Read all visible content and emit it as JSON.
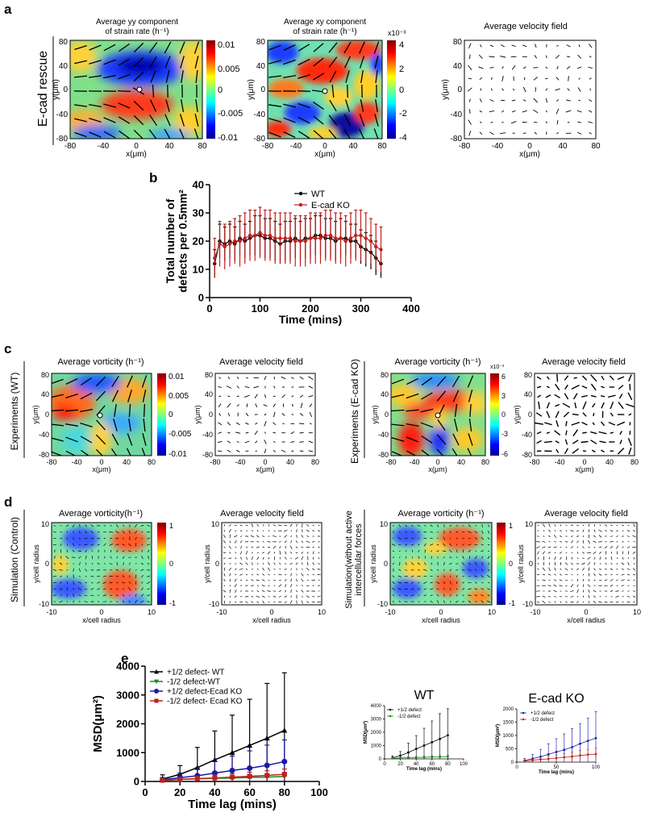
{
  "panel_letters": {
    "a": "a",
    "b": "b",
    "c": "c",
    "d": "d",
    "e": "e"
  },
  "colors": {
    "wt": "#000000",
    "ko": "#c0201e",
    "wt_plus": "#000000",
    "wt_minus": "#1a8a1a",
    "ko_plus": "#1a1aa6",
    "ko_minus": "#c0201e"
  },
  "row_labels": {
    "a": "E-cad rescue",
    "c_left": "Experiments (WT)",
    "c_right": "Experiments (E-cad KO)",
    "d_left": "Simulation (Control)",
    "d_right_1": "Simulation(without active",
    "d_right_2": "intercellular forces"
  },
  "panel_a": {
    "title1_l1": "Average yy component",
    "title1_l2": "of strain rate (h⁻¹)",
    "title2_l1": "Average xy component",
    "title2_l2": "of strain rate (h⁻¹)",
    "title3": "Average velocity field",
    "cbar1": [
      "0.01",
      "0.005",
      "0",
      "-0.005",
      "-0.01"
    ],
    "cbar2": [
      "4",
      "2",
      "0",
      "-2",
      "-4"
    ],
    "cbar2_exp": "x10⁻³",
    "xticks": [
      "-80",
      "-40",
      "0",
      "40",
      "80"
    ],
    "yticks": [
      "80",
      "40",
      "0",
      "-40",
      "-80"
    ],
    "xlabel": "x(μm)",
    "ylabel": "y(μm)"
  },
  "panel_c": {
    "t_vort": "Average vorticity (h⁻¹)",
    "t_vel": "Average velocity field",
    "cbar_left": [
      "0.01",
      "0.005",
      "0",
      "-0.005",
      "-0.01"
    ],
    "cbar_right": [
      "6",
      "3",
      "0",
      "-3",
      "-6"
    ],
    "cbar_right_exp": "x10⁻³",
    "xticks": [
      "-80",
      "-40",
      "0",
      "40",
      "80"
    ],
    "yticks": [
      "80",
      "40",
      "0",
      "-40",
      "-80"
    ],
    "xlabel": "x(μm)",
    "ylabel": "y(μm)"
  },
  "panel_d": {
    "t_vort_left": "Average vorticity(h⁻¹)",
    "t_vort_right": "Average vorticity (h⁻¹)",
    "t_vel": "Average velocity field",
    "cbar": [
      "1",
      "0",
      "-1"
    ],
    "xticks": [
      "-10",
      "0",
      "10"
    ],
    "yticks": [
      "10",
      "0",
      "-10"
    ],
    "xlabel": "x/cell radius",
    "ylabel": "y/cell radius"
  },
  "chart_data": [
    {
      "id": "b",
      "type": "line",
      "xlabel": "Time (mins)",
      "ylabel": "Total number of defects per 0.5mm²",
      "xlim": [
        0,
        400
      ],
      "ylim": [
        0,
        40
      ],
      "xticks": [
        "0",
        "100",
        "200",
        "300",
        "400"
      ],
      "yticks": [
        "0",
        "10",
        "20",
        "30",
        "40"
      ],
      "legend_position": "top",
      "x": [
        10,
        20,
        30,
        40,
        50,
        60,
        70,
        80,
        90,
        100,
        110,
        120,
        130,
        140,
        150,
        160,
        170,
        180,
        190,
        200,
        210,
        220,
        230,
        240,
        250,
        260,
        270,
        280,
        290,
        300,
        310,
        320,
        330,
        340
      ],
      "series": [
        {
          "name": "WT",
          "values": [
            12,
            20,
            19,
            20,
            19,
            21,
            20,
            21,
            22,
            22,
            21,
            21,
            20,
            19,
            20,
            20,
            21,
            20,
            21,
            21,
            22,
            22,
            21,
            21,
            20,
            21,
            21,
            20,
            20,
            18,
            17,
            16,
            14,
            12
          ],
          "err": [
            5,
            6,
            6,
            6,
            6,
            6,
            6,
            6,
            7,
            7,
            7,
            7,
            7,
            7,
            7,
            7,
            7,
            7,
            7,
            7,
            7,
            7,
            7,
            7,
            7,
            7,
            6,
            6,
            6,
            6,
            6,
            6,
            6,
            5
          ]
        },
        {
          "name": "E-cad KO",
          "values": [
            14,
            19,
            18,
            19,
            20,
            20,
            21,
            22,
            22,
            23,
            22,
            22,
            21,
            21,
            21,
            21,
            20,
            20,
            20,
            21,
            21,
            21,
            22,
            22,
            21,
            21,
            20,
            21,
            22,
            22,
            21,
            20,
            18,
            17
          ],
          "err": [
            7,
            8,
            8,
            8,
            8,
            9,
            9,
            9,
            9,
            9,
            9,
            9,
            9,
            9,
            9,
            9,
            9,
            9,
            9,
            9,
            9,
            9,
            9,
            9,
            9,
            9,
            9,
            9,
            9,
            9,
            9,
            8,
            8,
            8
          ]
        }
      ]
    },
    {
      "id": "e_main",
      "type": "line",
      "xlabel": "Time lag (mins)",
      "ylabel": "MSD(μm²)",
      "xlim": [
        0,
        100
      ],
      "ylim": [
        0,
        4000
      ],
      "xticks": [
        "0",
        "20",
        "40",
        "60",
        "80",
        "100"
      ],
      "yticks": [
        "0",
        "1000",
        "2000",
        "3000",
        "4000"
      ],
      "x": [
        10,
        20,
        30,
        40,
        50,
        60,
        70,
        80
      ],
      "series": [
        {
          "name": "+1/2 defect- WT",
          "values": [
            80,
            250,
            480,
            750,
            1000,
            1250,
            1500,
            1770
          ],
          "err": [
            150,
            300,
            700,
            1000,
            1300,
            1600,
            1900,
            2000
          ],
          "marker": "triangle-up"
        },
        {
          "name": "-1/2 defect-WT",
          "values": [
            40,
            70,
            90,
            110,
            120,
            140,
            150,
            170
          ],
          "err": [
            30,
            40,
            60,
            70,
            80,
            90,
            100,
            110
          ],
          "marker": "triangle-down"
        },
        {
          "name": "+1/2 defect-Ecad KO",
          "values": [
            60,
            130,
            200,
            290,
            380,
            460,
            560,
            690
          ],
          "err": [
            80,
            160,
            280,
            400,
            500,
            600,
            700,
            750
          ],
          "marker": "circle"
        },
        {
          "name": "-1/2 defect- Ecad KO",
          "values": [
            40,
            70,
            100,
            120,
            150,
            180,
            210,
            250
          ],
          "err": [
            40,
            60,
            80,
            100,
            120,
            140,
            160,
            180
          ],
          "marker": "square"
        }
      ]
    },
    {
      "id": "e_wt",
      "type": "line",
      "title": "WT",
      "xlabel": "Time lag (mins)",
      "ylabel": "MSD(μm²)",
      "xlim": [
        0,
        100
      ],
      "ylim": [
        0,
        4000
      ],
      "xticks": [
        "0",
        "20",
        "40",
        "60",
        "80",
        "100"
      ],
      "yticks": [
        "0",
        "1000",
        "2000",
        "3000",
        "4000"
      ],
      "x": [
        10,
        20,
        30,
        40,
        50,
        60,
        70,
        80
      ],
      "series": [
        {
          "name": "+1/2 defect",
          "values": [
            80,
            250,
            480,
            750,
            1000,
            1250,
            1500,
            1770
          ],
          "err": [
            150,
            300,
            700,
            1000,
            1300,
            1600,
            1900,
            2000
          ]
        },
        {
          "name": "-1/2 defect",
          "values": [
            40,
            70,
            90,
            110,
            120,
            140,
            150,
            170
          ],
          "err": [
            30,
            40,
            60,
            70,
            80,
            90,
            100,
            110
          ]
        }
      ]
    },
    {
      "id": "e_ko",
      "type": "line",
      "title": "E-cad KO",
      "xlabel": "Time lag (mins)",
      "ylabel": "MSD(μm²)",
      "xlim": [
        0,
        100
      ],
      "ylim": [
        0,
        2000
      ],
      "xticks": [
        "0",
        "50",
        "100"
      ],
      "yticks": [
        "0",
        "500",
        "1000",
        "1500",
        "2000"
      ],
      "x": [
        10,
        20,
        30,
        40,
        50,
        60,
        70,
        80,
        90,
        100
      ],
      "series": [
        {
          "name": "+1/2 defect",
          "values": [
            60,
            130,
            200,
            290,
            380,
            460,
            560,
            690,
            800,
            900
          ],
          "err": [
            80,
            160,
            280,
            400,
            500,
            600,
            700,
            750,
            850,
            1000
          ]
        },
        {
          "name": "-1/2 defect",
          "values": [
            40,
            70,
            100,
            120,
            150,
            180,
            210,
            250,
            280,
            300
          ],
          "err": [
            40,
            60,
            80,
            100,
            120,
            140,
            160,
            180,
            200,
            220
          ]
        }
      ]
    }
  ]
}
